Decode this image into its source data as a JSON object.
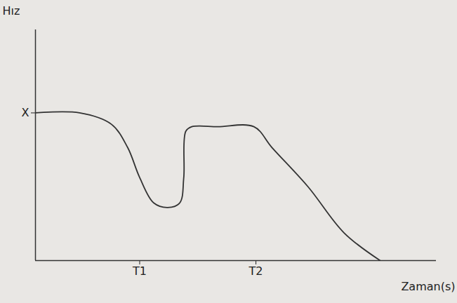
{
  "chart_data": {
    "type": "line",
    "x_label": "Zaman(s)",
    "y_label": "Hız",
    "x": [
      0,
      11,
      19,
      23,
      26,
      29.5,
      33,
      36,
      37,
      37.5,
      39,
      45.5,
      54.5,
      59,
      68,
      77,
      86
    ],
    "values": [
      64,
      64,
      59,
      49,
      36,
      25,
      23,
      25,
      36,
      56,
      58,
      58,
      58,
      49,
      32,
      12,
      0
    ],
    "color": "#333333",
    "xlim": [
      0,
      100
    ],
    "ylim": [
      0,
      100
    ],
    "xticks": [
      {
        "value": 26,
        "label": "T1"
      },
      {
        "value": 55,
        "label": "T2"
      }
    ],
    "yticks": [
      {
        "value": 64,
        "label": "X"
      }
    ],
    "grid": false
  }
}
